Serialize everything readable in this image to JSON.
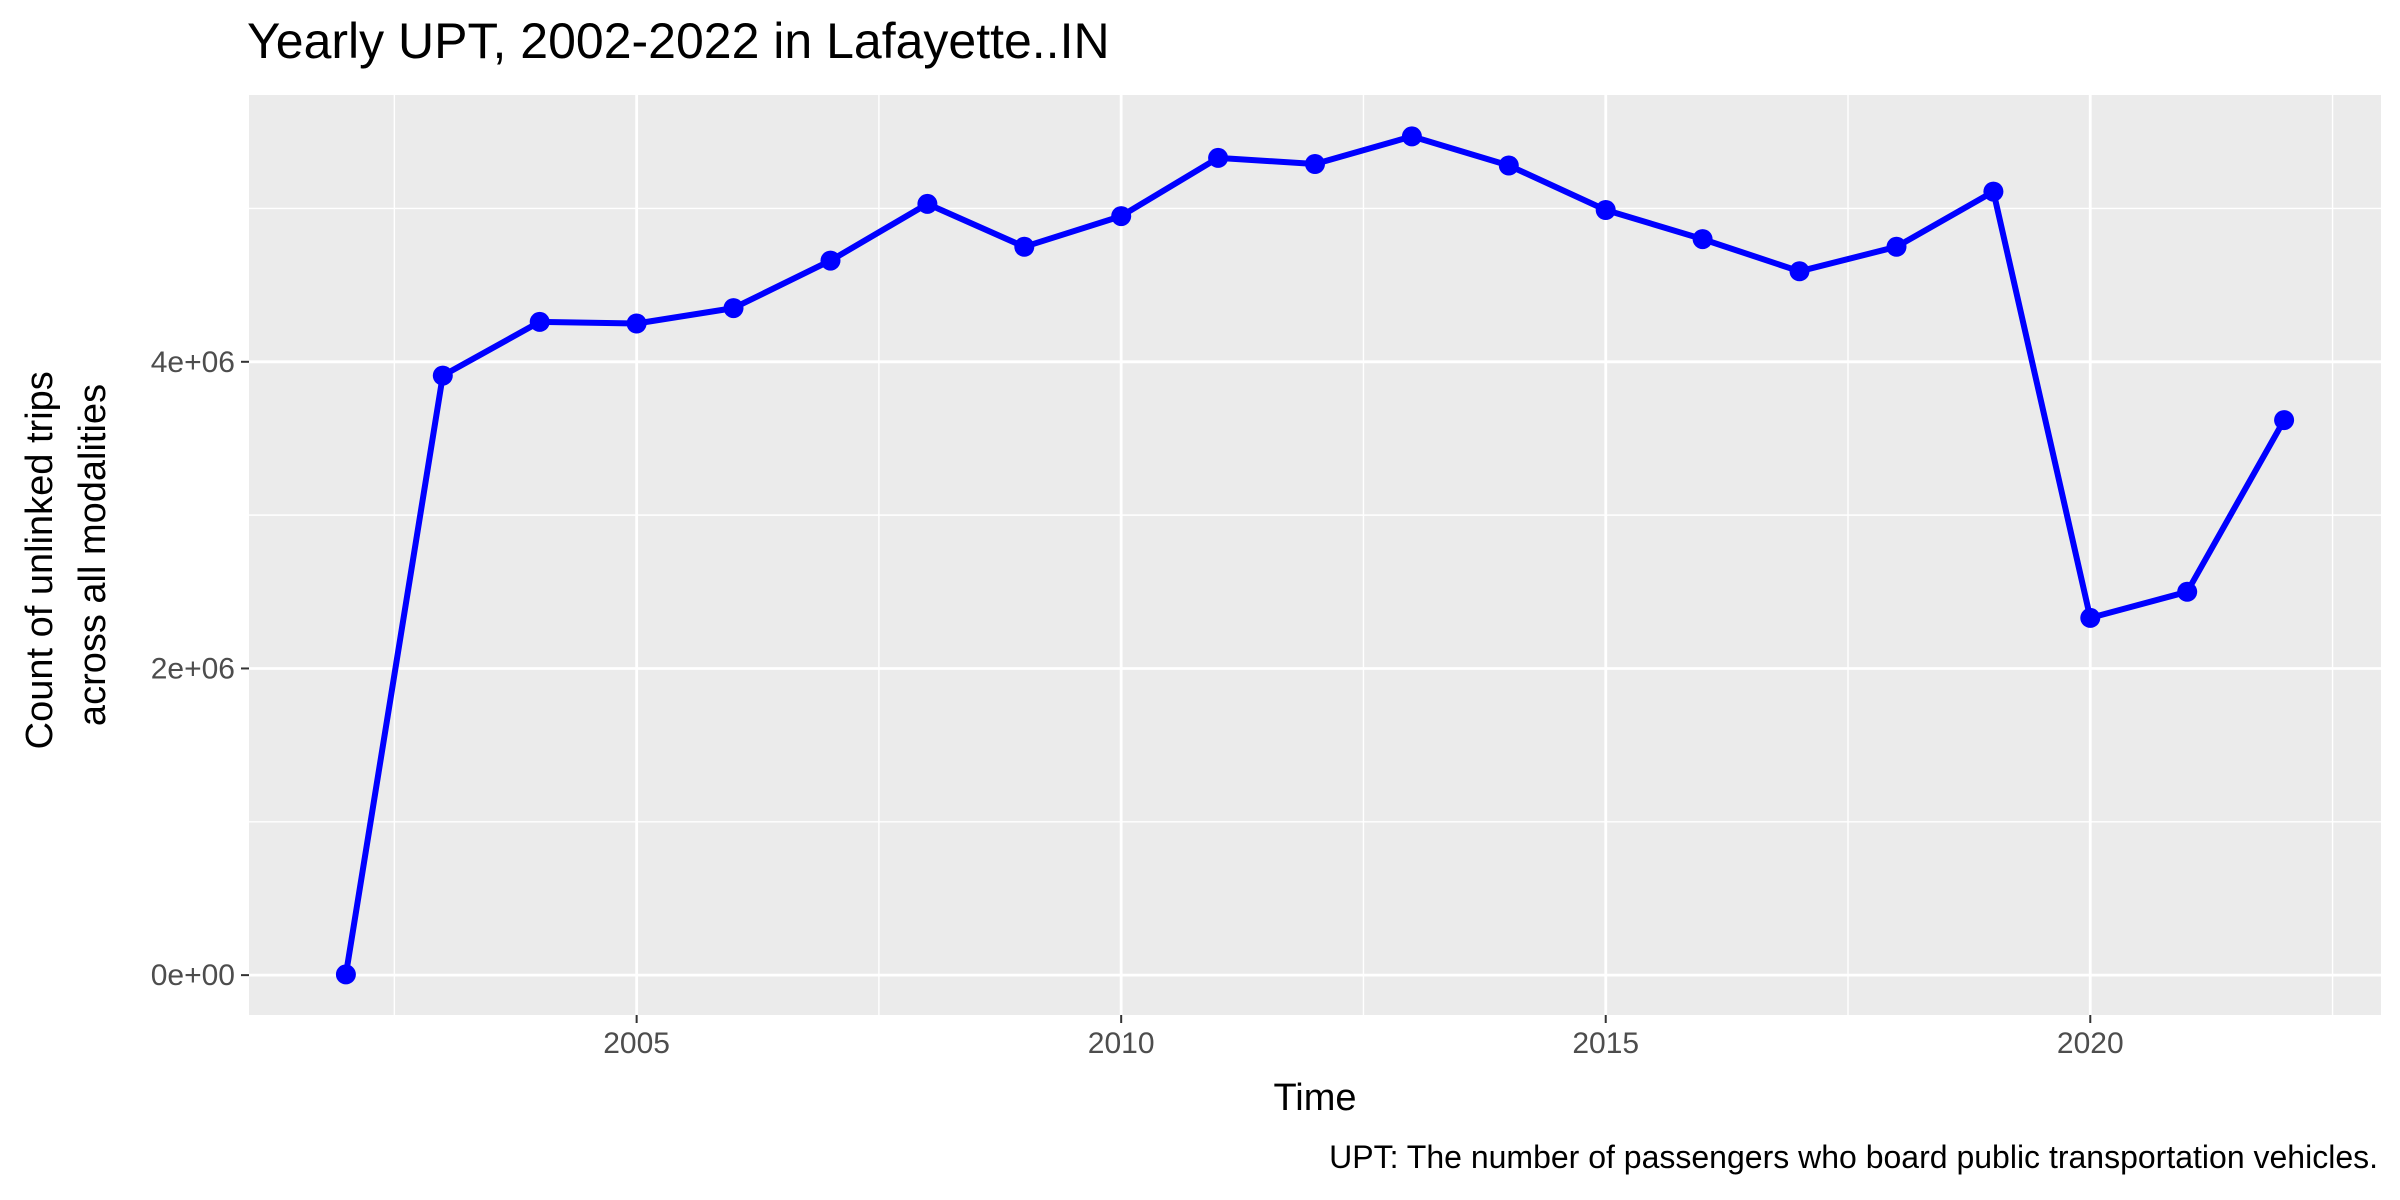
{
  "chart_data": {
    "type": "line",
    "title": "Yearly UPT, 2002-2022 in Lafayette..IN",
    "xlabel": "Time",
    "ylabel_lines": [
      "Count of unlinked trips",
      "across all modalities"
    ],
    "caption": "UPT: The number of passengers who board public transportation vehicles.",
    "x_ticks": [
      2005,
      2010,
      2015,
      2020
    ],
    "x_tick_labels": [
      "2005",
      "2010",
      "2015",
      "2020"
    ],
    "y_ticks": [
      0,
      2000000,
      4000000
    ],
    "y_tick_labels": [
      "0e+00",
      "2e+06",
      "4e+06"
    ],
    "xlim": [
      2001,
      2023
    ],
    "ylim": [
      -260000,
      5740000
    ],
    "grid": true,
    "legend": "none",
    "colors": {
      "series": "#0000ff",
      "panel_background": "#ebebeb",
      "grid": "#ffffff",
      "tick_label": "#4d4d4d"
    },
    "series": [
      {
        "x": [
          2002,
          2003,
          2004,
          2005,
          2006,
          2007,
          2008,
          2009,
          2010,
          2011,
          2012,
          2013,
          2014,
          2015,
          2016,
          2017,
          2018,
          2019,
          2020,
          2021,
          2022
        ],
        "values": [
          5000,
          3910000,
          4260000,
          4250000,
          4350000,
          4660000,
          5030000,
          4750000,
          4950000,
          5330000,
          5290000,
          5470000,
          5280000,
          4990000,
          4800000,
          4590000,
          4750000,
          5110000,
          2330000,
          2500000,
          3620000
        ]
      }
    ]
  }
}
